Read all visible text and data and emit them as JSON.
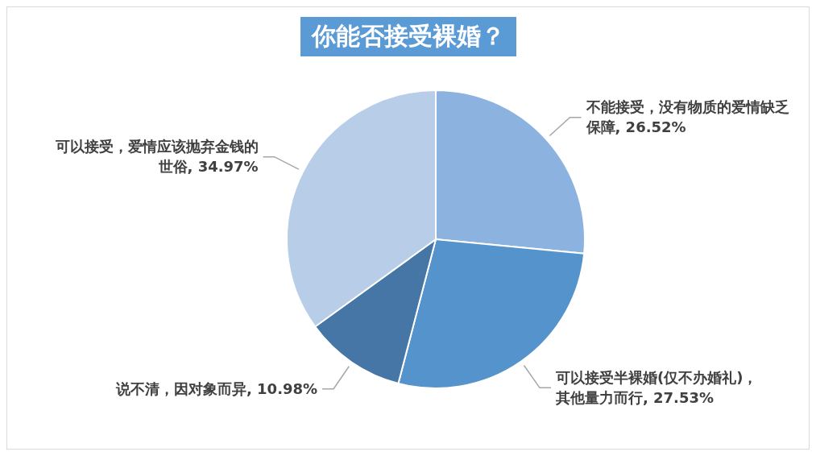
{
  "chart_data": {
    "type": "pie",
    "title": "你能否接受裸婚？",
    "categories": [
      "不能接受，没有物质的爱情缺乏保障",
      "可以接受半裸婚(仅不办婚礼)，其他量力而行",
      "说不清，因对象而异",
      "可以接受，爱情应该抛弃金钱的世俗"
    ],
    "values": [
      26.52,
      27.53,
      10.98,
      34.97
    ],
    "colors": [
      "#8cb3e0",
      "#5593cc",
      "#4576a6",
      "#b8cde8"
    ],
    "value_labels": [
      ", 26.52%",
      ", 27.53%",
      ", 10.98%",
      ", 34.97%"
    ],
    "legend": false
  }
}
